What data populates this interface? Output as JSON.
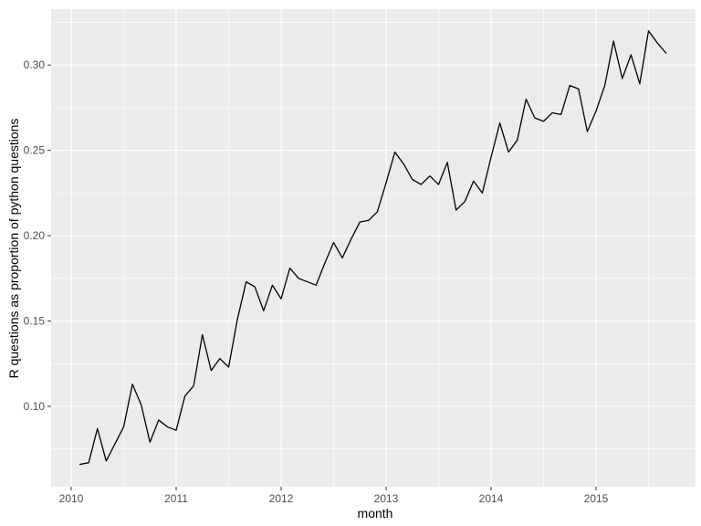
{
  "chart_data": {
    "type": "line",
    "title": "",
    "xlabel": "month",
    "ylabel": "R questions as proportion of python questions",
    "legend": "none",
    "grid": "ggplot2 grey panel, white major and minor gridlines",
    "x_tick_labels": [
      "2010",
      "2011",
      "2012",
      "2013",
      "2014",
      "2015"
    ],
    "y_tick_labels": [
      "0.10",
      "0.15",
      "0.20",
      "0.25",
      "0.30"
    ],
    "y_tick_values": [
      0.1,
      0.15,
      0.2,
      0.25,
      0.3
    ],
    "ylim": [
      0.053,
      0.333
    ],
    "xlim": [
      "2010-01",
      "2015-10"
    ],
    "series": [
      {
        "name": "R questions as proportion of python questions",
        "x": [
          "2010-02",
          "2010-03",
          "2010-04",
          "2010-05",
          "2010-06",
          "2010-07",
          "2010-08",
          "2010-09",
          "2010-10",
          "2010-11",
          "2010-12",
          "2011-01",
          "2011-02",
          "2011-03",
          "2011-04",
          "2011-05",
          "2011-06",
          "2011-07",
          "2011-08",
          "2011-09",
          "2011-10",
          "2011-11",
          "2011-12",
          "2012-01",
          "2012-02",
          "2012-03",
          "2012-04",
          "2012-05",
          "2012-06",
          "2012-07",
          "2012-08",
          "2012-09",
          "2012-10",
          "2012-11",
          "2012-12",
          "2013-01",
          "2013-02",
          "2013-03",
          "2013-04",
          "2013-05",
          "2013-06",
          "2013-07",
          "2013-08",
          "2013-09",
          "2013-10",
          "2013-11",
          "2013-12",
          "2014-01",
          "2014-02",
          "2014-03",
          "2014-04",
          "2014-05",
          "2014-06",
          "2014-07",
          "2014-08",
          "2014-09",
          "2014-10",
          "2014-11",
          "2014-12",
          "2015-01",
          "2015-02",
          "2015-03",
          "2015-04",
          "2015-05",
          "2015-06",
          "2015-07",
          "2015-08",
          "2015-09"
        ],
        "values": [
          0.066,
          0.067,
          0.087,
          0.068,
          0.078,
          0.088,
          0.113,
          0.101,
          0.079,
          0.092,
          0.088,
          0.086,
          0.106,
          0.112,
          0.142,
          0.121,
          0.128,
          0.123,
          0.151,
          0.173,
          0.17,
          0.156,
          0.171,
          0.163,
          0.181,
          0.175,
          0.173,
          0.171,
          0.184,
          0.196,
          0.187,
          0.198,
          0.208,
          0.209,
          0.214,
          0.231,
          0.249,
          0.242,
          0.233,
          0.23,
          0.235,
          0.23,
          0.243,
          0.215,
          0.22,
          0.232,
          0.225,
          0.246,
          0.266,
          0.249,
          0.256,
          0.28,
          0.269,
          0.267,
          0.272,
          0.271,
          0.288,
          0.286,
          0.261,
          0.273,
          0.288,
          0.314,
          0.292,
          0.306,
          0.289,
          0.32,
          0.313,
          0.307
        ]
      }
    ],
    "colors": {
      "line": "#000000",
      "panel_background": "#EBEBEB",
      "gridline": "#FFFFFF",
      "axis_text": "#4D4D4D",
      "axis_title": "#000000",
      "tick_mark": "#333333",
      "outer_background": "#FFFFFF"
    }
  }
}
